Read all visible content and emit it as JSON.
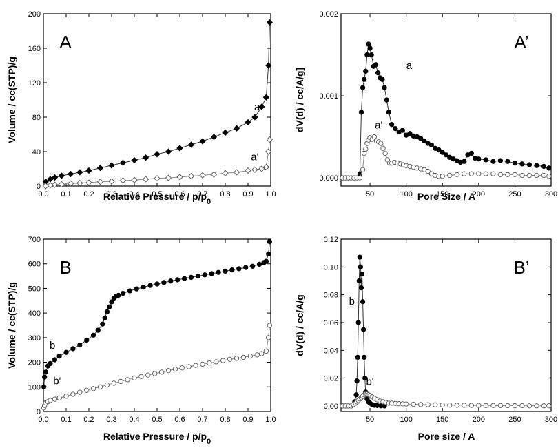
{
  "chart_data": [
    {
      "id": "A",
      "type": "scatter",
      "panel_label": "A",
      "xlabel": "Relative Pressure / p/p",
      "xlabel_sub": "0",
      "ylabel": "Volume / cc(STP)/g",
      "xlim": [
        0,
        1.0
      ],
      "ylim": [
        0,
        200
      ],
      "xticks": [
        0.0,
        0.1,
        0.2,
        0.3,
        0.4,
        0.5,
        0.6,
        0.7,
        0.8,
        0.9,
        1.0
      ],
      "xtick_labels": [
        "0.0",
        "0.1",
        "0.2",
        "0.3",
        "0.4",
        "0.5",
        "0.6",
        "0.7",
        "0.8",
        "0.9",
        "1.0"
      ],
      "yticks": [
        0,
        40,
        80,
        120,
        160,
        200
      ],
      "ytick_labels": [
        "0",
        "40",
        "80",
        "120",
        "160",
        "200"
      ],
      "series": [
        {
          "name": "a",
          "marker": "diamond",
          "filled": true,
          "color": "#000000",
          "x": [
            0.01,
            0.03,
            0.05,
            0.08,
            0.12,
            0.16,
            0.2,
            0.25,
            0.3,
            0.35,
            0.4,
            0.45,
            0.5,
            0.55,
            0.6,
            0.65,
            0.7,
            0.75,
            0.8,
            0.85,
            0.9,
            0.93,
            0.96,
            0.98,
            0.99,
            0.995
          ],
          "y": [
            5,
            8,
            10,
            12,
            14,
            16,
            18,
            21,
            24,
            27,
            30,
            33,
            37,
            40,
            44,
            48,
            52,
            57,
            62,
            67,
            74,
            80,
            92,
            103,
            140,
            190
          ]
        },
        {
          "name": "a'",
          "marker": "diamond",
          "filled": false,
          "color": "#555555",
          "x": [
            0.01,
            0.03,
            0.05,
            0.08,
            0.12,
            0.16,
            0.2,
            0.25,
            0.3,
            0.35,
            0.4,
            0.45,
            0.5,
            0.55,
            0.6,
            0.65,
            0.7,
            0.75,
            0.8,
            0.85,
            0.9,
            0.93,
            0.96,
            0.98,
            0.99,
            0.995
          ],
          "y": [
            0,
            1,
            1.5,
            2,
            3,
            3.5,
            4,
            5,
            5.5,
            6.5,
            7,
            8,
            9,
            9.5,
            10.5,
            11.5,
            12.5,
            13.5,
            15,
            16,
            18,
            19,
            20,
            22,
            40,
            54
          ]
        }
      ],
      "curve_labels": [
        {
          "text": "a",
          "x": 0.94,
          "y": 88
        },
        {
          "text": "a'",
          "x": 0.93,
          "y": 30
        }
      ]
    },
    {
      "id": "A'",
      "type": "scatter",
      "panel_label": "A’",
      "xlabel": "Pore Size / A",
      "ylabel": "dV(d) / cc/A/g]",
      "xlim": [
        10,
        300
      ],
      "ylim": [
        -0.0001,
        0.002
      ],
      "xticks": [
        50,
        100,
        150,
        200,
        250,
        300
      ],
      "xtick_labels": [
        "50",
        "100",
        "150",
        "200",
        "250",
        "300"
      ],
      "yticks": [
        0,
        0.001,
        0.002
      ],
      "ytick_labels": [
        "0.000",
        "0.001",
        "0.002"
      ],
      "series": [
        {
          "name": "a",
          "marker": "circle",
          "filled": true,
          "color": "#000000",
          "x": [
            12,
            16,
            20,
            24,
            28,
            32,
            36,
            38,
            40,
            42,
            44,
            46,
            48,
            50,
            52,
            55,
            58,
            61,
            64,
            67,
            70,
            73,
            76,
            80,
            85,
            90,
            95,
            100,
            105,
            110,
            115,
            120,
            125,
            130,
            135,
            140,
            145,
            150,
            155,
            160,
            165,
            170,
            175,
            180,
            185,
            190,
            195,
            200,
            210,
            220,
            230,
            240,
            250,
            260,
            270,
            280,
            290,
            297
          ],
          "y": [
            0,
            0,
            0,
            0,
            0,
            0,
            5e-05,
            0.0008,
            0.0011,
            0.0012,
            0.0013,
            0.0015,
            0.00163,
            0.00158,
            0.0015,
            0.00136,
            0.00138,
            0.00128,
            0.00122,
            0.0012,
            0.0011,
            0.00095,
            0.0008,
            0.00065,
            0.0006,
            0.00056,
            0.00058,
            0.00052,
            0.00054,
            0.00051,
            0.0005,
            0.00048,
            0.00045,
            0.00042,
            0.0004,
            0.00036,
            0.00034,
            0.00031,
            0.00028,
            0.00025,
            0.00023,
            0.00021,
            0.00019,
            0.0002,
            0.00028,
            0.0003,
            0.00024,
            0.00023,
            0.00022,
            0.0002,
            0.00021,
            0.0002,
            0.00018,
            0.00017,
            0.00016,
            0.00015,
            0.00014,
            0.00012
          ]
        },
        {
          "name": "a'",
          "marker": "circle",
          "filled": false,
          "color": "#555555",
          "x": [
            12,
            16,
            20,
            24,
            28,
            32,
            36,
            40,
            42,
            44,
            46,
            48,
            50,
            53,
            56,
            59,
            62,
            65,
            68,
            71,
            74,
            77,
            80,
            84,
            88,
            92,
            96,
            100,
            105,
            110,
            115,
            120,
            125,
            130,
            135,
            140,
            145,
            150,
            160,
            170,
            180,
            190,
            200,
            210,
            220,
            230,
            240,
            250,
            260,
            270,
            280,
            290,
            297
          ],
          "y": [
            0,
            0,
            0,
            0,
            0,
            0,
            0,
            0.0001,
            0.0003,
            0.00035,
            0.00042,
            0.00046,
            0.00049,
            0.00047,
            0.0005,
            0.00045,
            0.00044,
            0.00042,
            0.00036,
            0.0003,
            0.00022,
            0.00018,
            0.00018,
            0.00019,
            0.00018,
            0.00017,
            0.00016,
            0.00015,
            0.00014,
            0.00013,
            0.00012,
            0.00011,
            0.0001,
            8e-05,
            5e-05,
            3e-05,
            2e-05,
            2e-05,
            3e-05,
            4e-05,
            5e-05,
            5e-05,
            5e-05,
            5e-05,
            5e-05,
            4e-05,
            4e-05,
            4e-05,
            3e-05,
            3e-05,
            3e-05,
            3e-05,
            2e-05
          ]
        }
      ],
      "curve_labels": [
        {
          "text": "a",
          "x": 104,
          "y": 0.00133
        },
        {
          "text": "a'",
          "x": 62,
          "y": 0.0006
        }
      ]
    },
    {
      "id": "B",
      "type": "scatter",
      "panel_label": "B",
      "xlabel": "Relative Pressure / p/p",
      "xlabel_sub": "0",
      "ylabel": "Volume / cc(STP)/g",
      "xlim": [
        0,
        1.0
      ],
      "ylim": [
        0,
        700
      ],
      "xticks": [
        0.0,
        0.1,
        0.2,
        0.3,
        0.4,
        0.5,
        0.6,
        0.7,
        0.8,
        0.9,
        1.0
      ],
      "xtick_labels": [
        "0.0",
        "0.1",
        "0.2",
        "0.3",
        "0.4",
        "0.5",
        "0.6",
        "0.7",
        "0.8",
        "0.9",
        "1.0"
      ],
      "yticks": [
        0,
        100,
        200,
        300,
        400,
        500,
        600,
        700
      ],
      "ytick_labels": [
        "0",
        "100",
        "200",
        "300",
        "400",
        "500",
        "600",
        "700"
      ],
      "series": [
        {
          "name": "b",
          "marker": "circle",
          "filled": true,
          "color": "#000000",
          "x": [
            0.002,
            0.005,
            0.01,
            0.02,
            0.03,
            0.05,
            0.07,
            0.1,
            0.13,
            0.16,
            0.19,
            0.22,
            0.24,
            0.26,
            0.27,
            0.28,
            0.29,
            0.3,
            0.31,
            0.32,
            0.33,
            0.35,
            0.38,
            0.41,
            0.44,
            0.47,
            0.5,
            0.53,
            0.56,
            0.59,
            0.62,
            0.65,
            0.68,
            0.71,
            0.74,
            0.77,
            0.8,
            0.83,
            0.86,
            0.89,
            0.92,
            0.95,
            0.97,
            0.98,
            0.99,
            0.995
          ],
          "y": [
            100,
            140,
            160,
            185,
            195,
            210,
            225,
            240,
            255,
            270,
            290,
            310,
            330,
            355,
            380,
            405,
            425,
            445,
            460,
            468,
            472,
            480,
            490,
            498,
            505,
            512,
            518,
            524,
            530,
            535,
            540,
            545,
            550,
            555,
            560,
            565,
            570,
            575,
            580,
            585,
            590,
            598,
            605,
            610,
            640,
            690
          ]
        },
        {
          "name": "b'",
          "marker": "circle",
          "filled": false,
          "color": "#555555",
          "x": [
            0.002,
            0.005,
            0.01,
            0.02,
            0.03,
            0.05,
            0.07,
            0.1,
            0.13,
            0.16,
            0.19,
            0.22,
            0.25,
            0.28,
            0.31,
            0.34,
            0.37,
            0.4,
            0.43,
            0.46,
            0.49,
            0.52,
            0.55,
            0.58,
            0.61,
            0.64,
            0.67,
            0.7,
            0.73,
            0.76,
            0.79,
            0.82,
            0.85,
            0.88,
            0.91,
            0.94,
            0.96,
            0.98,
            0.99,
            0.995
          ],
          "y": [
            15,
            25,
            35,
            40,
            45,
            50,
            55,
            62,
            70,
            78,
            86,
            93,
            100,
            108,
            115,
            122,
            129,
            136,
            142,
            148,
            154,
            160,
            166,
            172,
            177,
            182,
            187,
            192,
            197,
            202,
            207,
            212,
            216,
            220,
            225,
            230,
            235,
            245,
            300,
            350
          ]
        }
      ],
      "curve_labels": [
        {
          "text": "b",
          "x": 0.04,
          "y": 255
        },
        {
          "text": "b'",
          "x": 0.06,
          "y": 110
        }
      ]
    },
    {
      "id": "B'",
      "type": "scatter",
      "panel_label": "B’",
      "xlabel": "Pore size / A",
      "ylabel": "dV(d) / cc/A/g",
      "xlim": [
        10,
        300
      ],
      "ylim": [
        -0.004,
        0.12
      ],
      "xticks": [
        50,
        100,
        150,
        200,
        250,
        300
      ],
      "xtick_labels": [
        "50",
        "100",
        "150",
        "200",
        "250",
        "300"
      ],
      "yticks": [
        0.0,
        0.02,
        0.04,
        0.06,
        0.08,
        0.1,
        0.12
      ],
      "ytick_labels": [
        "0.00",
        "0.02",
        "0.04",
        "0.06",
        "0.08",
        "0.10",
        "0.12"
      ],
      "series": [
        {
          "name": "b",
          "marker": "circle",
          "filled": true,
          "color": "#000000",
          "x": [
            12,
            16,
            20,
            24,
            27,
            29,
            31,
            32,
            33,
            34,
            35,
            36,
            37,
            38,
            39,
            40,
            41,
            42,
            43,
            44,
            46,
            48,
            50,
            53,
            56,
            60,
            65,
            70
          ],
          "y": [
            0,
            0,
            0,
            0,
            0.001,
            0.003,
            0.008,
            0.018,
            0.035,
            0.06,
            0.09,
            0.107,
            0.1,
            0.085,
            0.095,
            0.075,
            0.055,
            0.035,
            0.02,
            0.01,
            0.005,
            0.003,
            0.002,
            0.001,
            0.0005,
            0.0003,
            0.0001,
            0
          ]
        },
        {
          "name": "b'",
          "marker": "circle",
          "filled": false,
          "color": "#555555",
          "x": [
            12,
            16,
            20,
            24,
            27,
            30,
            32,
            34,
            36,
            38,
            40,
            42,
            44,
            46,
            48,
            50,
            53,
            56,
            60,
            64,
            68,
            72,
            76,
            80,
            85,
            90,
            95,
            100,
            110,
            120,
            130,
            140,
            150,
            160,
            170,
            180,
            190,
            200,
            210,
            220,
            230,
            240,
            250,
            260,
            270,
            280,
            290,
            297
          ],
          "y": [
            0,
            0,
            0,
            0,
            0.001,
            0.002,
            0.003,
            0.004,
            0.005,
            0.006,
            0.007,
            0.008,
            0.0085,
            0.0085,
            0.008,
            0.0075,
            0.0065,
            0.0055,
            0.0045,
            0.0035,
            0.003,
            0.0025,
            0.002,
            0.002,
            0.0018,
            0.0016,
            0.0015,
            0.0014,
            0.0012,
            0.001,
            0.0009,
            0.0008,
            0.0007,
            0.0006,
            0.0005,
            0.0005,
            0.0004,
            0.0004,
            0.0003,
            0.0003,
            0.0003,
            0.0002,
            0.0002,
            0.0002,
            0.0001,
            0.0001,
            0.0001,
            0.0001
          ]
        }
      ],
      "curve_labels": [
        {
          "text": "b",
          "x": 25,
          "y": 0.073
        },
        {
          "text": "b'",
          "x": 50,
          "y": 0.015
        }
      ]
    }
  ]
}
